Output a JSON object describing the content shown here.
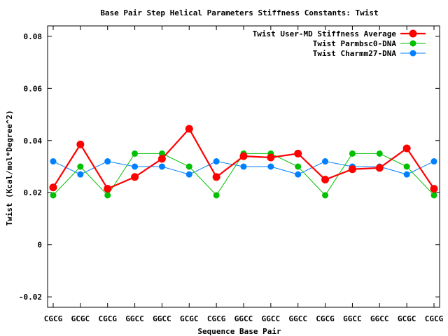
{
  "chart_data": {
    "type": "line",
    "title": "Base Pair Step Helical Parameters Stiffness Constants: Twist",
    "xlabel": "Sequence Base Pair",
    "ylabel": "Twist (Kcal/mol*Degree^2)",
    "categories": [
      "CGCG",
      "GCGC",
      "CGCG",
      "GGCC",
      "GGCC",
      "GCGC",
      "CGCG",
      "GGCC",
      "GGCC",
      "GGCC",
      "CGCG",
      "GGCC",
      "GGCC",
      "GCGC",
      "CGCG"
    ],
    "ylim": [
      -0.024,
      0.084
    ],
    "yticks": [
      -0.02,
      0,
      0.02,
      0.04,
      0.06,
      0.08
    ],
    "ytick_labels": [
      "-0.02",
      "0",
      "0.02",
      "0.04",
      "0.06",
      "0.08"
    ],
    "grid": false,
    "legend_position": "top-right",
    "series": [
      {
        "name": "Twist User-MD Stiffness Average",
        "color": "#ff0000",
        "values": [
          0.022,
          0.0385,
          0.0215,
          0.026,
          0.033,
          0.0445,
          0.026,
          0.034,
          0.0335,
          0.035,
          0.025,
          0.029,
          0.0295,
          0.037,
          0.0215
        ]
      },
      {
        "name": "Twist Parmbsc0-DNA",
        "color": "#00c000",
        "values": [
          0.019,
          0.03,
          0.019,
          0.035,
          0.035,
          0.03,
          0.019,
          0.035,
          0.035,
          0.03,
          0.019,
          0.035,
          0.035,
          0.03,
          0.019
        ]
      },
      {
        "name": "Twist Charmm27-DNA",
        "color": "#0080ff",
        "values": [
          0.032,
          0.027,
          0.032,
          0.03,
          0.03,
          0.027,
          0.032,
          0.03,
          0.03,
          0.027,
          0.032,
          0.03,
          0.03,
          0.027,
          0.032
        ]
      }
    ]
  }
}
